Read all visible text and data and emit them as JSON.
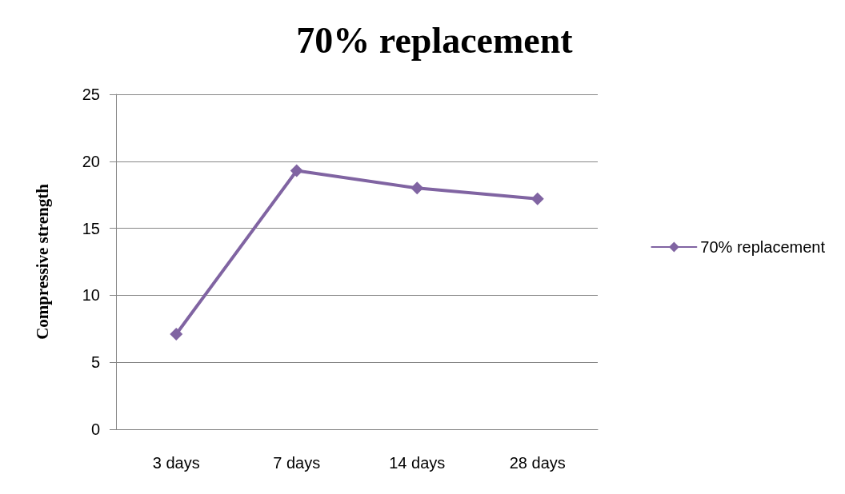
{
  "chart_data": {
    "type": "line",
    "title": "70% replacement",
    "ylabel": "Compressive strength",
    "categories": [
      "3 days",
      "7 days",
      "14 days",
      "28 days"
    ],
    "series": [
      {
        "name": "70% replacement",
        "color": "#8064a2",
        "values": [
          7.1,
          19.3,
          18.0,
          17.2
        ]
      }
    ],
    "ylim": [
      0,
      25
    ],
    "yticks": [
      0,
      5,
      10,
      15,
      20,
      25
    ],
    "grid": "y",
    "legend": "right",
    "marker": "diamond",
    "line_style": "solid"
  }
}
